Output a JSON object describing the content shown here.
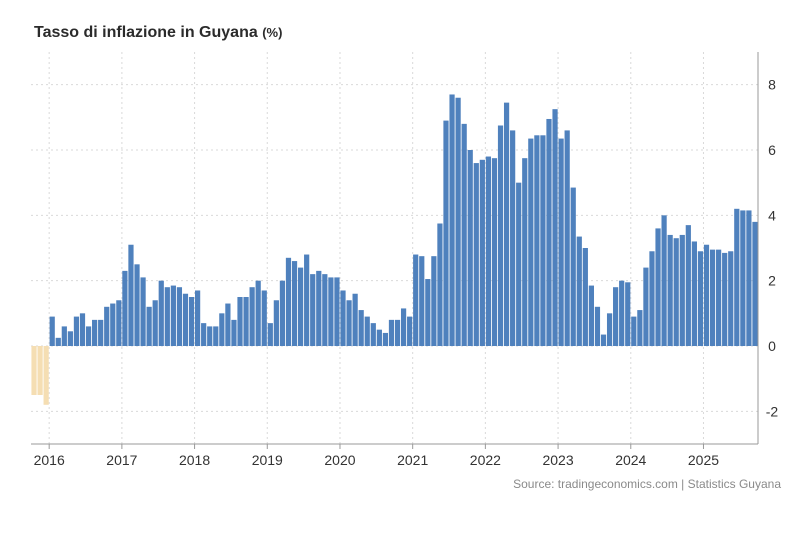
{
  "title": "Tasso di inflazione in Guyana",
  "title_unit": "(%)",
  "source": "Source: tradingeconomics.com | Statistics Guyana",
  "colors": {
    "positive": "#4f81bd",
    "negative": "#f5deb3",
    "grid": "#d9d9d9",
    "axis": "#999999"
  },
  "chart_data": {
    "type": "bar",
    "title": "Tasso di inflazione in Guyana (%)",
    "xlabel": "",
    "ylabel": "",
    "ylim": [
      -3,
      9
    ],
    "y_ticks": [
      -2,
      0,
      2,
      4,
      6,
      8
    ],
    "x_ticks": [
      "2016",
      "2017",
      "2018",
      "2019",
      "2020",
      "2021",
      "2022",
      "2023",
      "2024",
      "2025"
    ],
    "start": "2015-10",
    "frequency": "monthly",
    "values": [
      -1.5,
      -1.5,
      -1.8,
      0.9,
      0.25,
      0.6,
      0.45,
      0.9,
      1.0,
      0.6,
      0.8,
      0.8,
      1.2,
      1.3,
      1.4,
      2.3,
      3.1,
      2.5,
      2.1,
      1.2,
      1.4,
      2.0,
      1.8,
      1.85,
      1.8,
      1.6,
      1.5,
      1.7,
      0.7,
      0.6,
      0.6,
      1.0,
      1.3,
      0.8,
      1.5,
      1.5,
      1.8,
      2.0,
      1.7,
      0.7,
      1.4,
      2.0,
      2.7,
      2.6,
      2.4,
      2.8,
      2.2,
      2.3,
      2.2,
      2.1,
      2.1,
      1.7,
      1.4,
      1.6,
      1.1,
      0.9,
      0.7,
      0.5,
      0.4,
      0.8,
      0.8,
      1.15,
      0.9,
      2.8,
      2.75,
      2.05,
      2.75,
      3.75,
      6.9,
      7.7,
      7.6,
      6.8,
      6.0,
      5.6,
      5.7,
      5.8,
      5.75,
      6.75,
      7.45,
      6.6,
      5.0,
      5.75,
      6.35,
      6.45,
      6.45,
      6.95,
      7.25,
      6.35,
      6.6,
      4.85,
      3.35,
      3.0,
      1.85,
      1.2,
      0.35,
      1.0,
      1.8,
      2.0,
      1.95,
      0.9,
      1.1,
      2.4,
      2.9,
      3.6,
      4.0,
      3.4,
      3.3,
      3.4,
      3.7,
      3.2,
      2.9,
      3.1,
      2.95,
      2.95,
      2.85,
      2.9,
      4.2,
      4.15,
      4.15,
      3.8
    ]
  }
}
